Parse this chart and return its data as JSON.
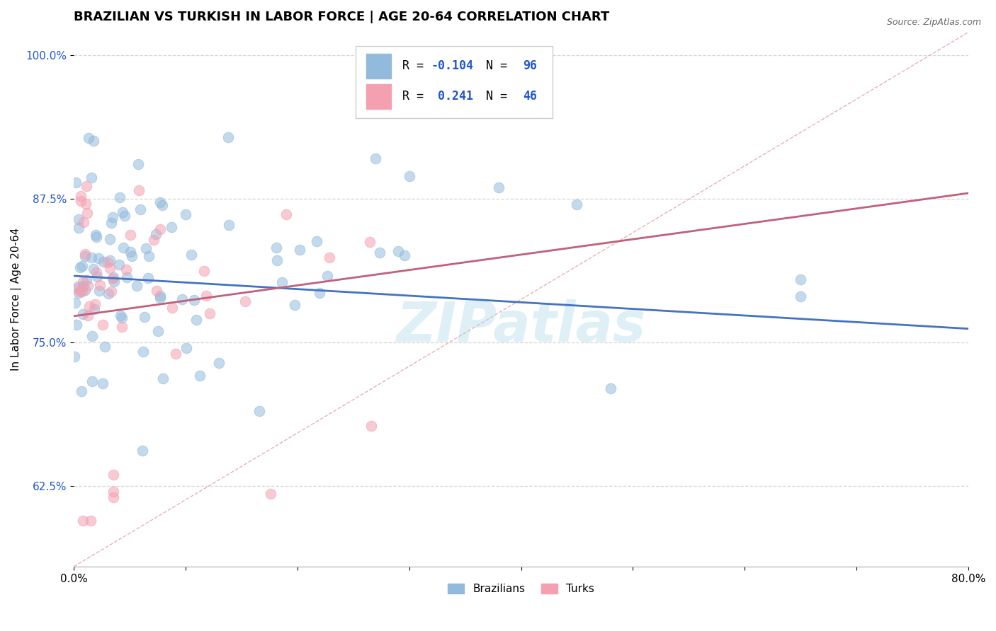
{
  "title": "BRAZILIAN VS TURKISH IN LABOR FORCE | AGE 20-64 CORRELATION CHART",
  "source_text": "Source: ZipAtlas.com",
  "ylabel": "In Labor Force | Age 20-64",
  "xlim": [
    0.0,
    0.8
  ],
  "ylim": [
    0.555,
    1.02
  ],
  "ytick_positions": [
    0.625,
    0.75,
    0.875,
    1.0
  ],
  "yticklabels": [
    "62.5%",
    "75.0%",
    "87.5%",
    "100.0%"
  ],
  "blue_color": "#92BADD",
  "pink_color": "#F4A0B0",
  "blue_line_color": "#4472C4",
  "pink_line_color": "#C0607A",
  "ref_line_color": "#E8A0AA",
  "legend_R_blue": "-0.104",
  "legend_N_blue": "96",
  "legend_R_pink": "0.241",
  "legend_N_pink": "46",
  "legend_R_color": "#2255CC",
  "legend_N_color": "#2255CC",
  "watermark": "ZIPatlas",
  "watermark_color": "#ADD8E6",
  "title_fontsize": 13,
  "axis_label_fontsize": 11,
  "tick_fontsize": 11,
  "blue_n": 96,
  "pink_n": 46,
  "blue_trend_x0": 0.0,
  "blue_trend_y0": 0.808,
  "blue_trend_x1": 0.8,
  "blue_trend_y1": 0.762,
  "pink_trend_x0": 0.0,
  "pink_trend_y0": 0.773,
  "pink_trend_x1": 0.8,
  "pink_trend_y1": 0.88,
  "ref_line_x0": 0.0,
  "ref_line_y0": 0.555,
  "ref_line_x1": 0.8,
  "ref_line_y1": 1.02
}
